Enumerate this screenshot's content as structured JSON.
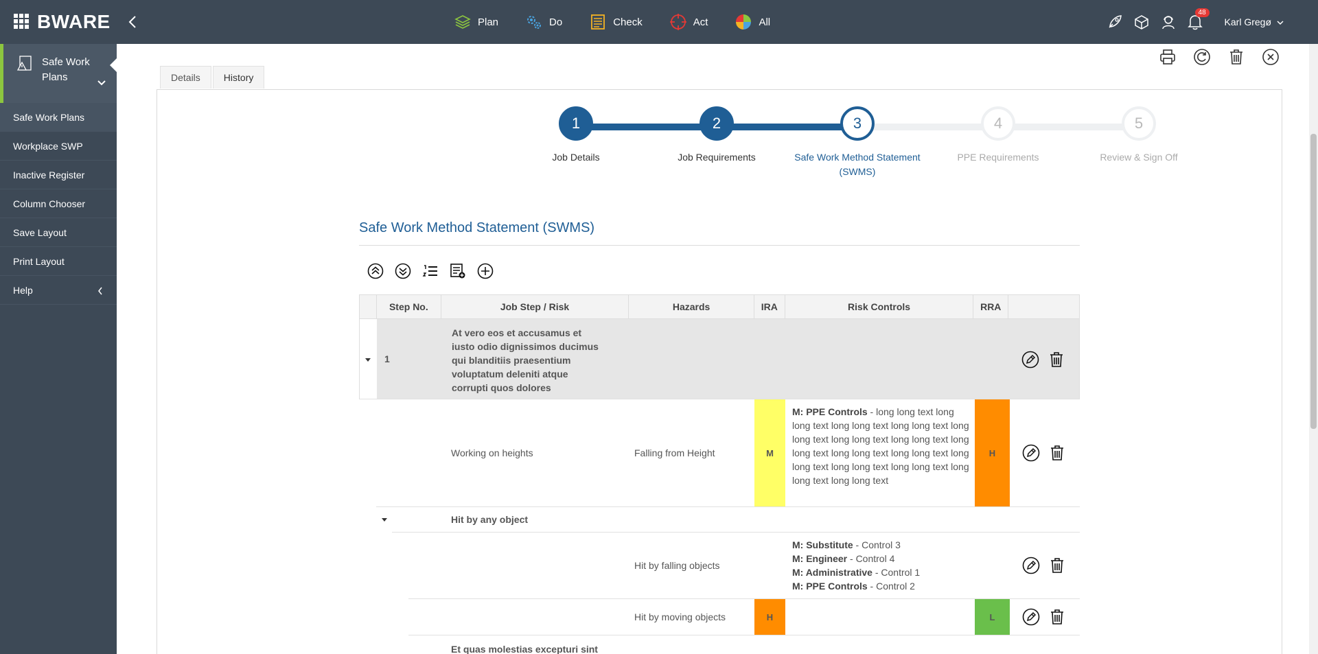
{
  "app": {
    "logo_text": "BWARE"
  },
  "top_nav": [
    {
      "label": "Plan",
      "icon": "stack-icon",
      "color": "#8cc63f"
    },
    {
      "label": "Do",
      "icon": "gears-icon",
      "color": "#4aa3df"
    },
    {
      "label": "Check",
      "icon": "checklist-icon",
      "color": "#f5b323"
    },
    {
      "label": "Act",
      "icon": "target-icon",
      "color": "#e53935"
    },
    {
      "label": "All",
      "icon": "pie-icon",
      "color": "#8cc63f"
    }
  ],
  "header_right": {
    "notifications": "48",
    "user_name": "Karl Gregø"
  },
  "sidebar": {
    "module_label": "Safe Work Plans",
    "items": [
      {
        "label": "Safe Work Plans",
        "active": true
      },
      {
        "label": "Workplace SWP"
      },
      {
        "label": "Inactive Register"
      },
      {
        "label": "Column Chooser"
      },
      {
        "label": "Save Layout"
      },
      {
        "label": "Print Layout"
      },
      {
        "label": "Help"
      }
    ]
  },
  "tabs": [
    {
      "label": "Details"
    },
    {
      "label": "History"
    }
  ],
  "stepper": {
    "steps": [
      {
        "number": "1",
        "label": "Job Details",
        "state": "done"
      },
      {
        "number": "2",
        "label": "Job Requirements",
        "state": "done"
      },
      {
        "number": "3",
        "label": "Safe Work Method Statement (SWMS)",
        "state": "current"
      },
      {
        "number": "4",
        "label": "PPE Requirements",
        "state": "todo"
      },
      {
        "number": "5",
        "label": "Review & Sign Off",
        "state": "todo"
      }
    ]
  },
  "section": {
    "title": "Safe Work Method Statement (SWMS)"
  },
  "grid": {
    "columns": [
      "Step No.",
      "Job Step / Risk",
      "Hazards",
      "IRA",
      "Risk Controls",
      "RRA"
    ],
    "group1": {
      "step_no": "1",
      "text": "At vero eos et accusamus et iusto odio dignissimos ducimus qui blanditiis praesentium voluptatum deleniti atque corrupti quos dolores"
    },
    "row_heights": {
      "risk": "Working on heights",
      "hazard": "Falling from Height",
      "ira": "M",
      "ira_color": "#ffff66",
      "control_prefix": "M: PPE Controls",
      "control_text": " - long long text long long text long long text long long text long long text long long text long long text long long text long long text long long text long long text long long text long long text long long text long long text",
      "rra": "H",
      "rra_color": "#ff8c00"
    },
    "subgroup": {
      "label": "Hit by any object"
    },
    "row_falling": {
      "hazard": "Hit by falling objects",
      "controls": [
        {
          "prefix": "M: Substitute",
          "text": " - Control 3"
        },
        {
          "prefix": "M: Engineer",
          "text": " - Control 4"
        },
        {
          "prefix": "M: Administrative",
          "text": " - Control 1"
        },
        {
          "prefix": "M: PPE Controls",
          "text": " - Control 2"
        }
      ]
    },
    "row_moving": {
      "hazard": "Hit by moving objects",
      "ira": "H",
      "ira_color": "#ff8c00",
      "rra": "L",
      "rra_color": "#6abf4b"
    },
    "group2": {
      "text": "Et quas molestias excepturi sint"
    }
  }
}
